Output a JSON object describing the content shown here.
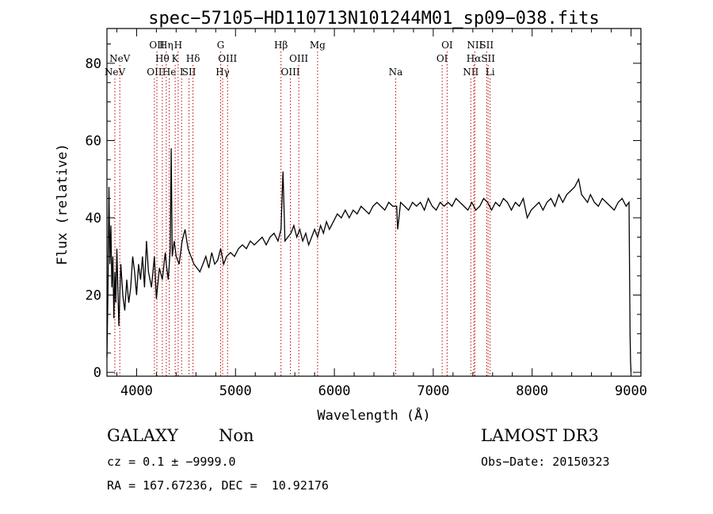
{
  "chart_data": {
    "type": "line",
    "title": "spec−57105−HD110713N101244M01_sp09−038.fits",
    "xlabel": "Wavelength (Å)",
    "ylabel": "Flux (relative)",
    "xlim": [
      3700,
      9100
    ],
    "ylim": [
      -1,
      89
    ],
    "xticks": [
      4000,
      5000,
      6000,
      7000,
      8000,
      9000
    ],
    "xtick_labels": [
      "4000",
      "5000",
      "6000",
      "7000",
      "8000",
      "9000"
    ],
    "yticks": [
      0,
      20,
      40,
      60,
      80
    ],
    "ytick_labels": [
      "0",
      "20",
      "40",
      "60",
      "80"
    ],
    "grid": false,
    "series": [
      {
        "x": [
          3700,
          3710,
          3720,
          3730,
          3740,
          3750,
          3760,
          3770,
          3780,
          3790,
          3800,
          3820,
          3840,
          3860,
          3880,
          3900,
          3920,
          3940,
          3960,
          3980,
          4000,
          4020,
          4040,
          4060,
          4080,
          4100,
          4120,
          4150,
          4180,
          4200,
          4230,
          4260,
          4290,
          4300,
          4320,
          4340,
          4350,
          4360,
          4380,
          4400,
          4430,
          4460,
          4490,
          4520,
          4550,
          4580,
          4610,
          4640,
          4670,
          4700,
          4730,
          4760,
          4790,
          4820,
          4850,
          4880,
          4910,
          4950,
          4990,
          5030,
          5070,
          5110,
          5150,
          5190,
          5230,
          5270,
          5310,
          5350,
          5390,
          5430,
          5460,
          5480,
          5500,
          5530,
          5560,
          5590,
          5620,
          5650,
          5680,
          5710,
          5740,
          5770,
          5800,
          5830,
          5860,
          5890,
          5920,
          5950,
          5990,
          6030,
          6070,
          6110,
          6150,
          6190,
          6230,
          6270,
          6310,
          6350,
          6390,
          6430,
          6470,
          6510,
          6550,
          6590,
          6630,
          6640,
          6670,
          6710,
          6750,
          6790,
          6830,
          6870,
          6910,
          6950,
          6990,
          7030,
          7070,
          7110,
          7150,
          7190,
          7230,
          7270,
          7310,
          7350,
          7390,
          7430,
          7470,
          7510,
          7550,
          7590,
          7630,
          7670,
          7710,
          7750,
          7790,
          7830,
          7870,
          7910,
          7950,
          7990,
          8030,
          8070,
          8110,
          8150,
          8190,
          8230,
          8270,
          8310,
          8350,
          8390,
          8430,
          8470,
          8500,
          8530,
          8560,
          8590,
          8630,
          8670,
          8710,
          8750,
          8790,
          8830,
          8870,
          8910,
          8950,
          8980,
          8990,
          8995,
          9000
        ],
        "y": [
          4,
          20,
          48,
          28,
          38,
          22,
          30,
          14,
          26,
          18,
          32,
          12,
          28,
          20,
          16,
          24,
          18,
          22,
          30,
          26,
          20,
          28,
          24,
          30,
          22,
          34,
          26,
          22,
          30,
          19,
          27,
          24,
          31,
          28,
          24,
          32,
          58,
          30,
          34,
          30,
          28,
          34,
          37,
          32,
          30,
          28,
          27,
          26,
          28,
          30,
          27,
          31,
          28,
          29,
          32,
          28,
          30,
          31,
          30,
          32,
          33,
          32,
          34,
          33,
          34,
          35,
          33,
          35,
          36,
          34,
          37,
          52,
          34,
          35,
          36,
          38,
          35,
          37,
          34,
          36,
          33,
          35,
          37,
          35,
          38,
          36,
          39,
          37,
          39,
          41,
          40,
          42,
          40,
          42,
          41,
          43,
          42,
          41,
          43,
          44,
          43,
          42,
          44,
          43,
          43,
          37,
          44,
          43,
          42,
          44,
          43,
          44,
          42,
          45,
          43,
          42,
          44,
          43,
          44,
          43,
          45,
          44,
          43,
          42,
          44,
          42,
          43,
          45,
          44,
          42,
          44,
          43,
          45,
          44,
          42,
          44,
          43,
          45,
          40,
          42,
          43,
          44,
          42,
          44,
          45,
          43,
          46,
          44,
          46,
          47,
          48,
          50,
          46,
          45,
          44,
          46,
          44,
          43,
          45,
          44,
          43,
          42,
          44,
          45,
          43,
          44,
          10,
          3,
          0
        ]
      }
    ],
    "line_markers": [
      {
        "wl": 3780,
        "label": "NeV",
        "row": 2
      },
      {
        "wl": 3830,
        "label": "NeV",
        "row": 1
      },
      {
        "wl": 4180,
        "label": "OII",
        "row": 2
      },
      {
        "wl": 4205,
        "label": "OII",
        "row": 0
      },
      {
        "wl": 4260,
        "label": "Hθ",
        "row": 1
      },
      {
        "wl": 4300,
        "label": "Hη",
        "row": 0
      },
      {
        "wl": 4330,
        "label": "He",
        "row": 2
      },
      {
        "wl": 4390,
        "label": "K",
        "row": 1
      },
      {
        "wl": 4420,
        "label": "H",
        "row": 0
      },
      {
        "wl": 4455,
        "label": "I",
        "row": 2
      },
      {
        "wl": 4530,
        "label": "SII",
        "row": 2
      },
      {
        "wl": 4570,
        "label": "Hδ",
        "row": 1
      },
      {
        "wl": 4850,
        "label": "G",
        "row": 0
      },
      {
        "wl": 4870,
        "label": "Hγ",
        "row": 2
      },
      {
        "wl": 4920,
        "label": "OIII",
        "row": 1
      },
      {
        "wl": 5460,
        "label": "Hβ",
        "row": 0
      },
      {
        "wl": 5555,
        "label": "OIII",
        "row": 2
      },
      {
        "wl": 5640,
        "label": "OIII",
        "row": 1
      },
      {
        "wl": 5830,
        "label": "Mg",
        "row": 0
      },
      {
        "wl": 6620,
        "label": "Na",
        "row": 2
      },
      {
        "wl": 7090,
        "label": "OI",
        "row": 1
      },
      {
        "wl": 7140,
        "label": "OI",
        "row": 0
      },
      {
        "wl": 7380,
        "label": "NII",
        "row": 2
      },
      {
        "wl": 7410,
        "label": "Hα",
        "row": 1
      },
      {
        "wl": 7420,
        "label": "NII",
        "row": 0
      },
      {
        "wl": 7540,
        "label": "SII",
        "row": 0
      },
      {
        "wl": 7555,
        "label": "SII",
        "row": 1
      },
      {
        "wl": 7575,
        "label": "Li",
        "row": 2
      }
    ],
    "line_marker_color": "#c00000"
  },
  "info": {
    "class": "GALAXY",
    "subclass": "Non",
    "survey": "LAMOST DR3",
    "cz": "cz = 0.1 ± −9999.0",
    "obs_date": "Obs−Date: 20150323",
    "coords": "RA = 167.67236, DEC =  10.92176"
  }
}
